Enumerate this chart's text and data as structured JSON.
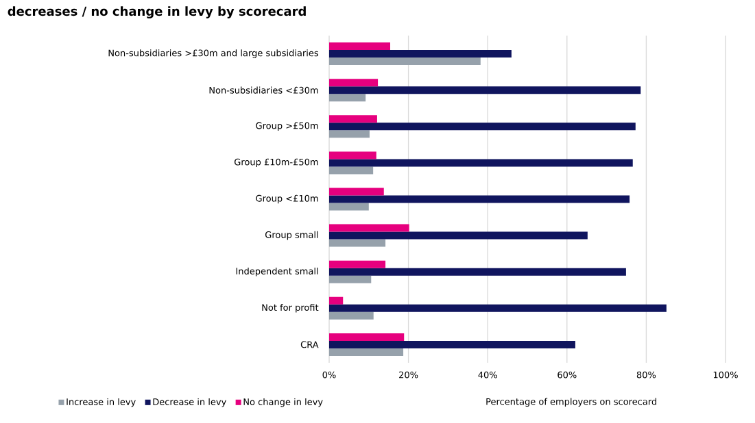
{
  "chart_data": {
    "type": "bar",
    "orientation": "horizontal",
    "title": "decreases / no change in levy by scorecard",
    "xlabel": "Percentage of employers on scorecard",
    "categories": [
      "Non-subsidiaries >£30m and large subsidiaries",
      "Non-subsidiaries <£30m",
      "Group >£50m",
      "Group £10m-£50m",
      "Group <£10m",
      "Group small",
      "Independent small",
      "Not for profit",
      "CRA"
    ],
    "series": [
      {
        "name": "Increase in levy",
        "color": "#96a1ab",
        "values": [
          38.2,
          9.2,
          10.2,
          11.1,
          10.0,
          14.2,
          10.6,
          11.2,
          18.7
        ]
      },
      {
        "name": "Decrease in levy",
        "color": "#10155e",
        "values": [
          46.0,
          78.6,
          77.3,
          76.6,
          75.8,
          65.2,
          74.9,
          85.1,
          62.1
        ]
      },
      {
        "name": "No change in levy",
        "color": "#e6007e",
        "values": [
          15.4,
          12.3,
          12.1,
          11.9,
          13.8,
          20.2,
          14.2,
          3.5,
          18.9
        ]
      }
    ],
    "xlim": [
      0,
      100
    ],
    "xticks": [
      {
        "value": 0,
        "label": "0%"
      },
      {
        "value": 20,
        "label": "20%"
      },
      {
        "value": 40,
        "label": "40%"
      },
      {
        "value": 60,
        "label": "60%"
      },
      {
        "value": 80,
        "label": "80%"
      },
      {
        "value": 100,
        "label": "100%"
      }
    ],
    "grid": "x",
    "legend": "bottom"
  }
}
